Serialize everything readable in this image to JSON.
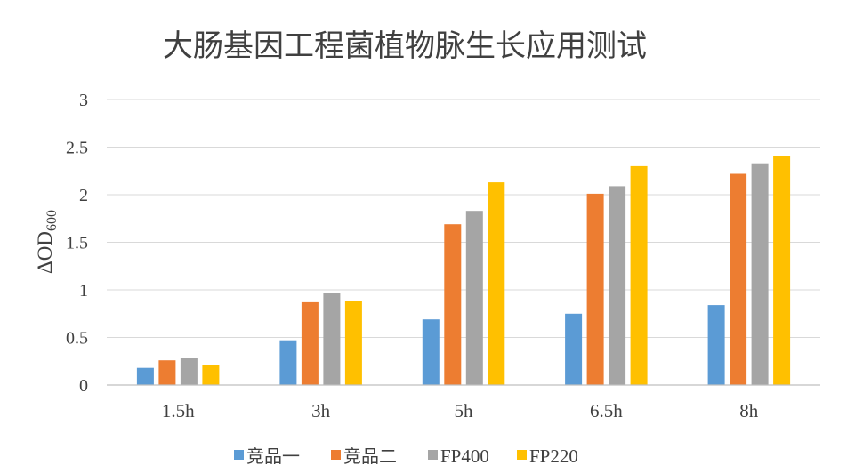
{
  "chart_data": {
    "type": "bar",
    "title": "大肠基因工程菌植物脉生长应用测试",
    "ylabel": "ΔOD",
    "ylabel_subscript": "600",
    "xlabel": "",
    "categories": [
      "1.5h",
      "3h",
      "5h",
      "6.5h",
      "8h"
    ],
    "ylim": [
      0,
      3
    ],
    "yticks": [
      "0",
      "0.5",
      "1",
      "1.5",
      "2",
      "2.5",
      "3"
    ],
    "ytick_values": [
      0,
      0.5,
      1,
      1.5,
      2,
      2.5,
      3
    ],
    "grid": true,
    "legend_position": "bottom",
    "series": [
      {
        "name": "竞品一",
        "color": "#5b9bd5",
        "values": [
          0.18,
          0.47,
          0.69,
          0.75,
          0.84
        ]
      },
      {
        "name": "竞品二",
        "color": "#ed7d31",
        "values": [
          0.26,
          0.87,
          1.69,
          2.01,
          2.22
        ]
      },
      {
        "name": "FP400",
        "color": "#a5a5a5",
        "values": [
          0.28,
          0.97,
          1.83,
          2.09,
          2.33
        ]
      },
      {
        "name": "FP220",
        "color": "#ffc000",
        "values": [
          0.21,
          0.88,
          2.13,
          2.3,
          2.41
        ]
      }
    ]
  }
}
